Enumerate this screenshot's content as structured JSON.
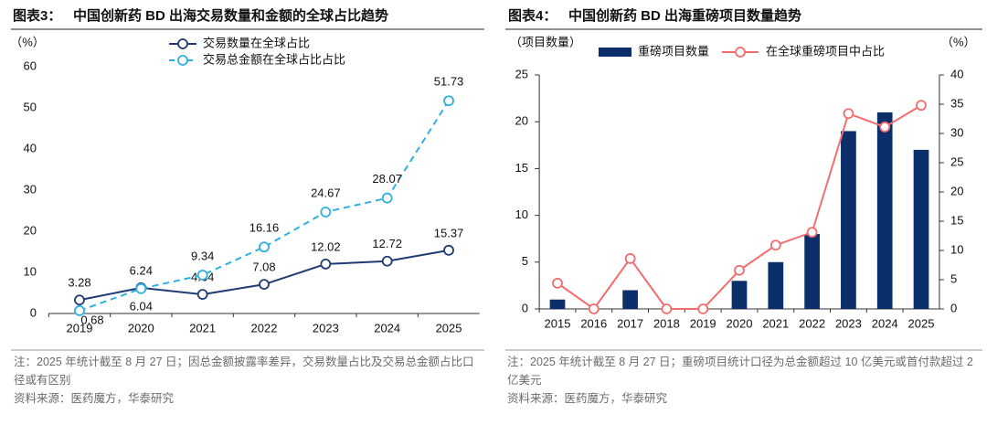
{
  "chart_data": [
    {
      "type": "line",
      "label": "图表3：",
      "title": "中国创新药 BD 出海交易数量和金额的全球占比趋势",
      "y_label": "（%）",
      "categories": [
        "2019",
        "2020",
        "2021",
        "2022",
        "2023",
        "2024",
        "2025"
      ],
      "ylim": [
        0,
        60
      ],
      "yticks": [
        0,
        10,
        20,
        30,
        40,
        50,
        60
      ],
      "series": [
        {
          "name": "交易数量在全球占比",
          "color": "#1f3c73",
          "style": "solid",
          "values": [
            3.28,
            6.24,
            4.64,
            7.08,
            12.02,
            12.72,
            15.37
          ]
        },
        {
          "name": "交易总金额在全球占比占比",
          "color": "#2fb0e0",
          "style": "dashed",
          "values": [
            0.68,
            6.04,
            9.34,
            16.16,
            24.67,
            28.07,
            51.73
          ]
        }
      ],
      "note": "注：2025 年统计截至 8 月 27 日；因总金额披露率差异，交易数量占比及交易总金额占比口径或有区别",
      "source": "资料来源：医药魔方，华泰研究"
    },
    {
      "type": "combo",
      "label": "图表4：",
      "title": "中国创新药 BD 出海重磅项目数量趋势",
      "y_label": "（项目数量）",
      "y2_label": "（%）",
      "categories": [
        "2015",
        "2016",
        "2017",
        "2018",
        "2019",
        "2020",
        "2021",
        "2022",
        "2023",
        "2024",
        "2025"
      ],
      "ylim": [
        0,
        25
      ],
      "yticks": [
        0,
        5,
        10,
        15,
        20,
        25
      ],
      "y2lim": [
        0,
        40
      ],
      "y2ticks": [
        0,
        5,
        10,
        15,
        20,
        25,
        30,
        35,
        40
      ],
      "series": [
        {
          "name": "重磅项目数量",
          "type": "bar",
          "color": "#0b2f6b",
          "values": [
            1,
            0,
            2,
            0,
            0,
            3,
            5,
            8,
            19,
            21,
            17
          ]
        },
        {
          "name": "在全球重磅项目中占比",
          "type": "line",
          "axis": "y2",
          "color": "#f26d6d",
          "values": [
            4.4,
            0,
            8.6,
            0,
            0,
            6.6,
            10.9,
            13.1,
            33.4,
            31.1,
            34.8
          ]
        }
      ],
      "note": "注：2025 年统计截至 8 月 27 日；重磅项目统计口径为总金额超过 10 亿美元或首付款超过 2 亿美元",
      "source": "资料来源：医药魔方，华泰研究"
    }
  ]
}
